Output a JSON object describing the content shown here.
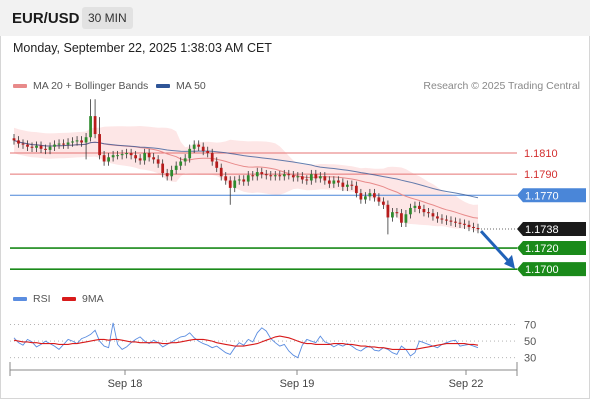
{
  "header": {
    "symbol": "EUR/USD",
    "timeframe": "30 MIN",
    "datetime": "Monday, September 22, 2025 1:38:03 AM CET"
  },
  "legend": {
    "ma20": "MA 20 + Bollinger Bands",
    "ma50": "MA 50",
    "credit": "Research © 2025 Trading Central",
    "rsi": "RSI",
    "ma9": "9MA"
  },
  "colors": {
    "ma20": "#e88a8a",
    "ma50": "#2f5597",
    "band_fill": "#fde3e3",
    "resistance": "#e57373",
    "pivot": "#4a86d8",
    "support": "#1a8a1a",
    "arrow": "#2162b8",
    "rsi": "#5b8de0",
    "ma9": "#d81b1b"
  },
  "chart_data": [
    {
      "type": "candlestick",
      "x_ticks": [
        "Sep 18",
        "Sep 19",
        "Sep 22"
      ],
      "ylim": [
        1.1685,
        1.1865
      ],
      "series": [
        {
          "name": "EUR/USD",
          "close": [
            1.1822,
            1.1819,
            1.1818,
            1.1816,
            1.1815,
            1.1817,
            1.1814,
            1.1813,
            1.1816,
            1.1818,
            1.1819,
            1.1818,
            1.182,
            1.1821,
            1.1822,
            1.182,
            1.1825,
            1.1845,
            1.1828,
            1.1808,
            1.1802,
            1.1806,
            1.1808,
            1.1808,
            1.1809,
            1.181,
            1.1808,
            1.1805,
            1.1803,
            1.181,
            1.1806,
            1.1804,
            1.18,
            1.1791,
            1.1788,
            1.1794,
            1.1798,
            1.1802,
            1.1805,
            1.1814,
            1.1818,
            1.1816,
            1.1812,
            1.181,
            1.1802,
            1.1796,
            1.1788,
            1.1784,
            1.1777,
            1.1784,
            1.1785,
            1.1783,
            1.1789,
            1.1788,
            1.1792,
            1.179,
            1.1789,
            1.1788,
            1.1789,
            1.1788,
            1.179,
            1.1789,
            1.1787,
            1.1788,
            1.1785,
            1.1784,
            1.179,
            1.1786,
            1.1788,
            1.1784,
            1.1781,
            1.1784,
            1.1782,
            1.1778,
            1.178,
            1.1779,
            1.1772,
            1.1766,
            1.1769,
            1.1772,
            1.1768,
            1.1764,
            1.1761,
            1.1749,
            1.1754,
            1.1753,
            1.1744,
            1.1752,
            1.1758,
            1.176,
            1.1757,
            1.1754,
            1.1753,
            1.175,
            1.1748,
            1.1747,
            1.1746,
            1.1745,
            1.1744,
            1.1743,
            1.1742,
            1.174,
            1.1739,
            1.1738
          ],
          "annotations": [
            {
              "label": "1.1738",
              "value": 1.1738
            }
          ]
        }
      ],
      "levels": [
        {
          "label": "1.1810",
          "value": 1.181,
          "kind": "resistance"
        },
        {
          "label": "1.1790",
          "value": 1.179,
          "kind": "resistance"
        },
        {
          "label": "1.1770",
          "value": 1.177,
          "kind": "pivot"
        },
        {
          "label": "1.1720",
          "value": 1.172,
          "kind": "support"
        },
        {
          "label": "1.1700",
          "value": 1.17,
          "kind": "support"
        }
      ],
      "grid": false
    },
    {
      "type": "line",
      "y_ticks": [
        "70",
        "50",
        "30"
      ],
      "ylim": [
        20,
        85
      ],
      "series": [
        {
          "name": "RSI",
          "values": [
            54,
            48,
            45,
            52,
            49,
            43,
            46,
            50,
            47,
            44,
            40,
            46,
            52,
            50,
            47,
            53,
            55,
            58,
            63,
            50,
            44,
            42,
            72,
            46,
            40,
            43,
            48,
            52,
            55,
            50,
            47,
            51,
            48,
            43,
            46,
            49,
            52,
            55,
            56,
            60,
            54,
            50,
            47,
            45,
            42,
            44,
            40,
            36,
            34,
            42,
            48,
            45,
            52,
            49,
            60,
            66,
            62,
            53,
            48,
            44,
            46,
            38,
            33,
            30,
            45,
            52,
            50,
            48,
            56,
            49,
            47,
            43,
            46,
            44,
            47,
            44,
            40,
            38,
            42,
            44,
            39,
            38,
            42,
            40,
            36,
            34,
            44,
            40,
            32,
            36,
            50,
            48,
            46,
            44,
            42,
            46,
            48,
            50,
            51,
            44,
            45,
            46,
            44,
            42
          ]
        },
        {
          "name": "9MA",
          "values": [
            51,
            50,
            49,
            49,
            48,
            48,
            47,
            47,
            47,
            47,
            46,
            46,
            46,
            47,
            47,
            48,
            49,
            50,
            51,
            52,
            52,
            51,
            52,
            52,
            51,
            50,
            49,
            49,
            48,
            48,
            48,
            48,
            48,
            47,
            47,
            48,
            48,
            49,
            50,
            51,
            52,
            52,
            52,
            51,
            50,
            48,
            47,
            46,
            45,
            44,
            44,
            44,
            45,
            46,
            47,
            49,
            51,
            53,
            55,
            56,
            55,
            54,
            52,
            50,
            48,
            47,
            47,
            46,
            46,
            46,
            46,
            47,
            47,
            47,
            46,
            46,
            45,
            44,
            44,
            43,
            43,
            42,
            42,
            41,
            40,
            40,
            40,
            40,
            40,
            40,
            41,
            42,
            43,
            44,
            45,
            46,
            47,
            47,
            47,
            47,
            47,
            46,
            46,
            45
          ]
        }
      ],
      "grid": true
    }
  ]
}
